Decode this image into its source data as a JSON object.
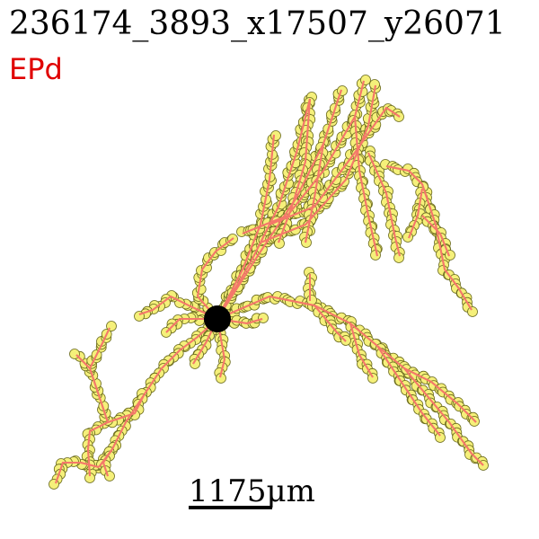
{
  "title": "236174_3893_x17507_y26071",
  "region_label": "EPd",
  "scale_bar_label": "1175μm",
  "colors": {
    "background": "#ffffff",
    "region_text": "#e00000",
    "branch_line": "#f4786a",
    "node_fill": "#f5f07a",
    "node_stroke": "#6b6b1e",
    "soma": "#000000"
  }
}
